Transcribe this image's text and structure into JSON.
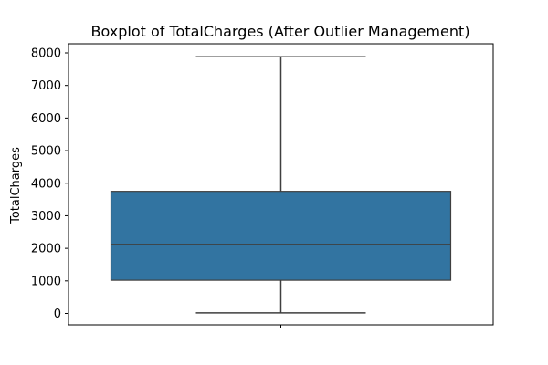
{
  "chart_data": {
    "type": "boxplot",
    "title": "Boxplot of TotalCharges (After Outlier Management)",
    "xlabel": "",
    "ylabel": "TotalCharges",
    "ylim": [
      -350,
      8280
    ],
    "yticks": [
      0,
      1000,
      2000,
      3000,
      4000,
      5000,
      6000,
      7000,
      8000
    ],
    "grid": false,
    "series": [
      {
        "min": 18.8,
        "q1": 1020,
        "median": 2120,
        "q3": 3750,
        "max": 7880
      }
    ],
    "colors": {
      "box_fill": "#3274a1",
      "line": "#3f3f3f",
      "axes": "#000000"
    }
  }
}
